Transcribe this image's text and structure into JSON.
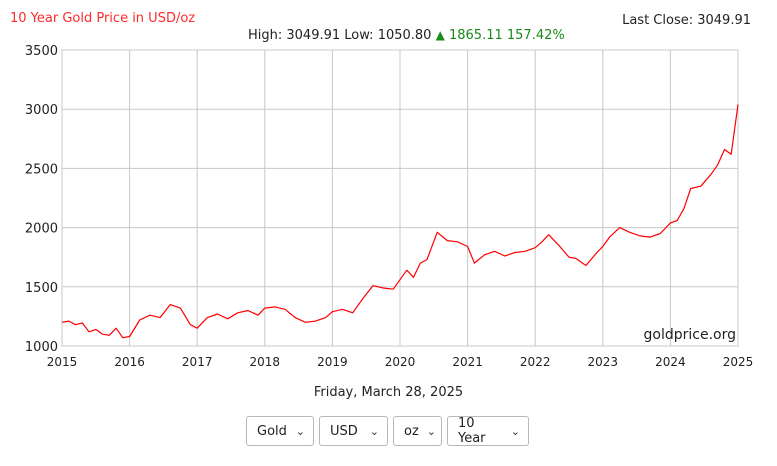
{
  "header": {
    "title": "10 Year Gold Price in USD/oz",
    "last_close_label": "Last Close: 3049.91",
    "high_text": "High: 3049.91",
    "low_text": "Low: 1050.80",
    "change_arrow": "▲",
    "change_text": "1865.11 157.42%",
    "up_color": "#1a8a1a"
  },
  "date_label": "Friday, March 28, 2025",
  "watermark": "goldprice.org",
  "controls": {
    "metal": "Gold",
    "currency": "USD",
    "unit": "oz",
    "period": "10 Year"
  },
  "chart_data": {
    "type": "line",
    "title": "10 Year Gold Price in USD/oz",
    "xlabel": "",
    "ylabel": "",
    "xlim": [
      2015,
      2025
    ],
    "ylim": [
      1000,
      3500
    ],
    "x_ticks": [
      "2015",
      "2016",
      "2017",
      "2018",
      "2019",
      "2020",
      "2021",
      "2022",
      "2023",
      "2024",
      "2025"
    ],
    "y_ticks": [
      "1000",
      "1500",
      "2000",
      "2500",
      "3000",
      "3500"
    ],
    "grid": true,
    "line_color": "#ff0000",
    "series": [
      {
        "x": [
          2015.0,
          2015.1,
          2015.2,
          2015.3,
          2015.4,
          2015.5,
          2015.6,
          2015.7,
          2015.8,
          2015.9,
          2016.0,
          2016.15,
          2016.3,
          2016.45,
          2016.6,
          2016.75,
          2016.9,
          2017.0,
          2017.15,
          2017.3,
          2017.45,
          2017.6,
          2017.75,
          2017.9,
          2018.0,
          2018.15,
          2018.3,
          2018.45,
          2018.6,
          2018.75,
          2018.9,
          2019.0,
          2019.15,
          2019.3,
          2019.45,
          2019.6,
          2019.75,
          2019.9,
          2020.0,
          2020.1,
          2020.2,
          2020.3,
          2020.4,
          2020.55,
          2020.7,
          2020.85,
          2021.0,
          2021.1,
          2021.25,
          2021.4,
          2021.55,
          2021.7,
          2021.85,
          2022.0,
          2022.1,
          2022.2,
          2022.35,
          2022.5,
          2022.6,
          2022.75,
          2022.9,
          2023.0,
          2023.1,
          2023.25,
          2023.4,
          2023.55,
          2023.7,
          2023.85,
          2024.0,
          2024.1,
          2024.2,
          2024.3,
          2024.45,
          2024.6,
          2024.7,
          2024.8,
          2024.9,
          2025.0
        ],
        "y": [
          1200,
          1210,
          1180,
          1195,
          1120,
          1140,
          1100,
          1090,
          1150,
          1070,
          1080,
          1220,
          1260,
          1240,
          1350,
          1320,
          1180,
          1150,
          1240,
          1270,
          1230,
          1280,
          1300,
          1260,
          1320,
          1330,
          1310,
          1240,
          1200,
          1210,
          1240,
          1290,
          1310,
          1280,
          1400,
          1510,
          1490,
          1480,
          1560,
          1640,
          1580,
          1700,
          1730,
          1960,
          1890,
          1880,
          1840,
          1700,
          1770,
          1800,
          1760,
          1790,
          1800,
          1830,
          1880,
          1940,
          1850,
          1750,
          1740,
          1680,
          1780,
          1840,
          1920,
          2000,
          1960,
          1930,
          1920,
          1950,
          2040,
          2060,
          2160,
          2330,
          2350,
          2450,
          2530,
          2660,
          2620,
          3040
        ]
      }
    ]
  }
}
